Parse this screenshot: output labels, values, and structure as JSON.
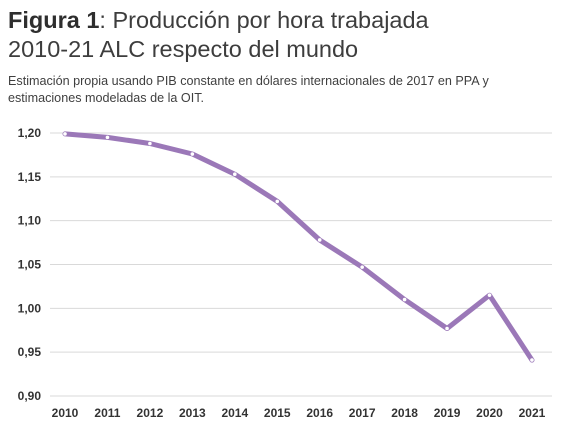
{
  "header": {
    "title_bold": "Figura 1",
    "title_rest": ": Producción por hora trabajada",
    "title_line2": "2010-21 ALC respecto del mundo",
    "subtitle": "Estimación propia usando PIB constante en dólares internacionales de 2017 en PPA y estimaciones modeladas de la OIT."
  },
  "colors": {
    "line": "#9b78b8",
    "marker": "#ffffff",
    "grid": "#d9d9d9"
  },
  "chart_data": {
    "type": "line",
    "title": "Figura 1: Producción por hora trabajada 2010-21 ALC respecto del mundo",
    "subtitle": "Estimación propia usando PIB constante en dólares internacionales de 2017 en PPA y estimaciones modeladas de la OIT.",
    "xlabel": "",
    "ylabel": "",
    "x": [
      "2010",
      "2011",
      "2012",
      "2013",
      "2014",
      "2015",
      "2016",
      "2017",
      "2018",
      "2019",
      "2020",
      "2021"
    ],
    "series": [
      {
        "values": [
          1.199,
          1.195,
          1.188,
          1.176,
          1.153,
          1.122,
          1.078,
          1.047,
          1.01,
          0.977,
          1.015,
          0.941
        ]
      }
    ],
    "ylim": [
      0.9,
      1.2
    ],
    "yticks": [
      1.2,
      1.15,
      1.1,
      1.05,
      1.0,
      0.95,
      0.9
    ],
    "ytick_labels": [
      "1,20",
      "1,15",
      "1,10",
      "1,05",
      "1,00",
      "0,95",
      "0,90"
    ],
    "grid": true,
    "legend": "none"
  }
}
